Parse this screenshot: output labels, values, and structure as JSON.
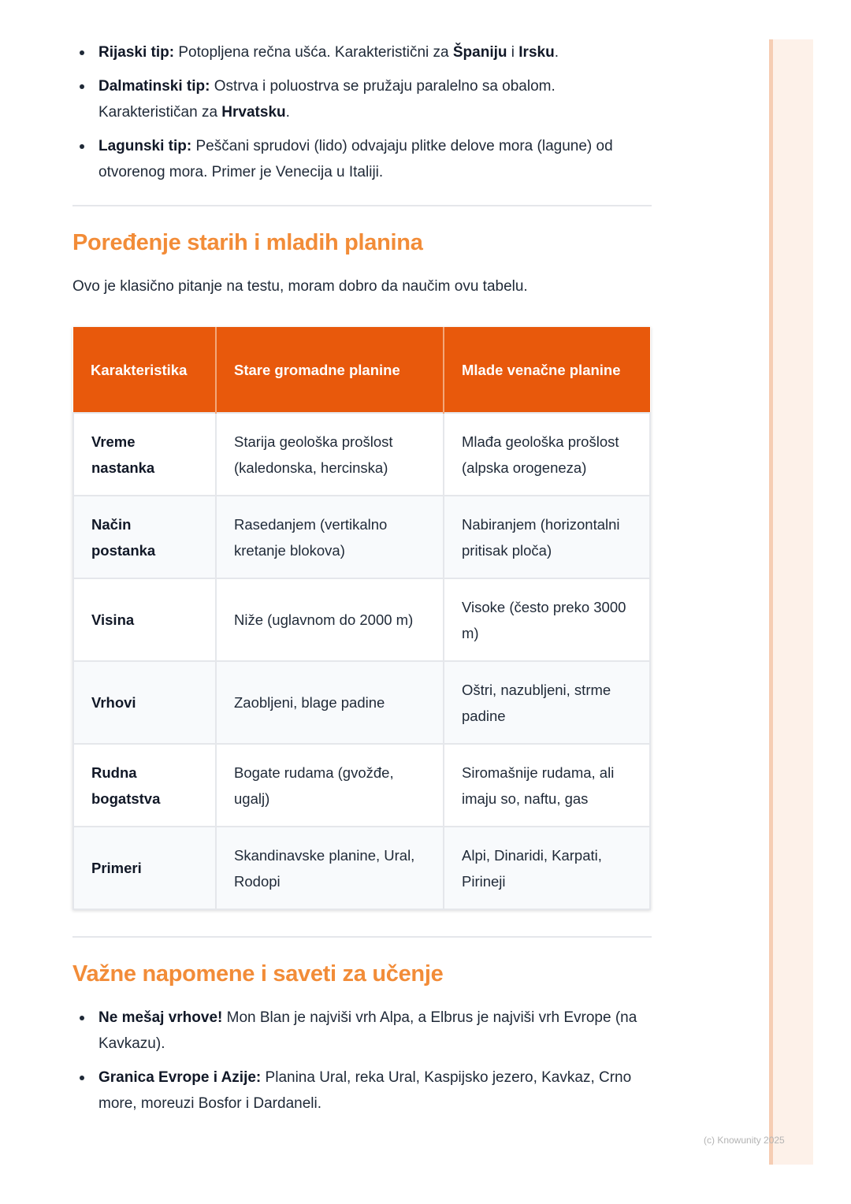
{
  "top_bullets": [
    {
      "bold": "Rijaski tip:",
      "text": " Potopljena rečna ušća. Karakteristični za ",
      "b2": "Španiju",
      "t2": " i ",
      "b3": "Irsku",
      "t3": "."
    },
    {
      "bold": "Dalmatinski tip:",
      "text": " Ostrva i poluostrva se pružaju paralelno sa obalom. Karakterističan za ",
      "b2": "Hrvatsku",
      "t2": "."
    },
    {
      "bold": "Lagunski tip:",
      "text": " Peščani sprudovi (lido) odvajaju plitke delove mora (lagune) od otvorenog mora. Primer je Venecija u Italiji."
    }
  ],
  "section1": {
    "title": "Poređenje starih i mladih planina",
    "intro": "Ovo je klasično pitanje na testu, moram dobro da naučim ovu tabelu."
  },
  "table": {
    "headers": [
      "Karakteristika",
      "Stare gromadne planine",
      "Mlade venačne planine"
    ],
    "rows": [
      [
        "Vreme nastanka",
        "Starija geološka prošlost (kaledonska, hercinska)",
        "Mlađa geološka prošlost (alpska orogeneza)"
      ],
      [
        "Način postanka",
        "Rasedanjem (vertikalno kretanje blokova)",
        "Nabiranjem (horizontalni pritisak ploča)"
      ],
      [
        "Visina",
        "Niže (uglavnom do 2000 m)",
        "Visoke (često preko 3000 m)"
      ],
      [
        "Vrhovi",
        "Zaobljeni, blage padine",
        "Oštri, nazubljeni, strme padine"
      ],
      [
        "Rudna bogatstva",
        "Bogate rudama (gvožđe, ugalj)",
        "Siromašnije rudama, ali imaju so, naftu, gas"
      ],
      [
        "Primeri",
        "Skandinavske planine, Ural, Rodopi",
        "Alpi, Dinaridi, Karpati, Pirineji"
      ]
    ]
  },
  "section2": {
    "title": "Važne napomene i saveti za učenje",
    "bullets": [
      {
        "bold": "Ne mešaj vrhove!",
        "text": " Mon Blan je najviši vrh Alpa, a Elbrus je najviši vrh Evrope (na Kavkazu)."
      },
      {
        "bold": "Granica Evrope i Azije:",
        "text": " Planina Ural, reka Ural, Kaspijsko jezero, Kavkaz, Crno more, moreuzi Bosfor i Dardaneli."
      }
    ]
  },
  "footer": {
    "copyright": "(c) Knowunity 2025"
  },
  "colors": {
    "accent": "#e8590c",
    "heading": "#f28c38"
  }
}
